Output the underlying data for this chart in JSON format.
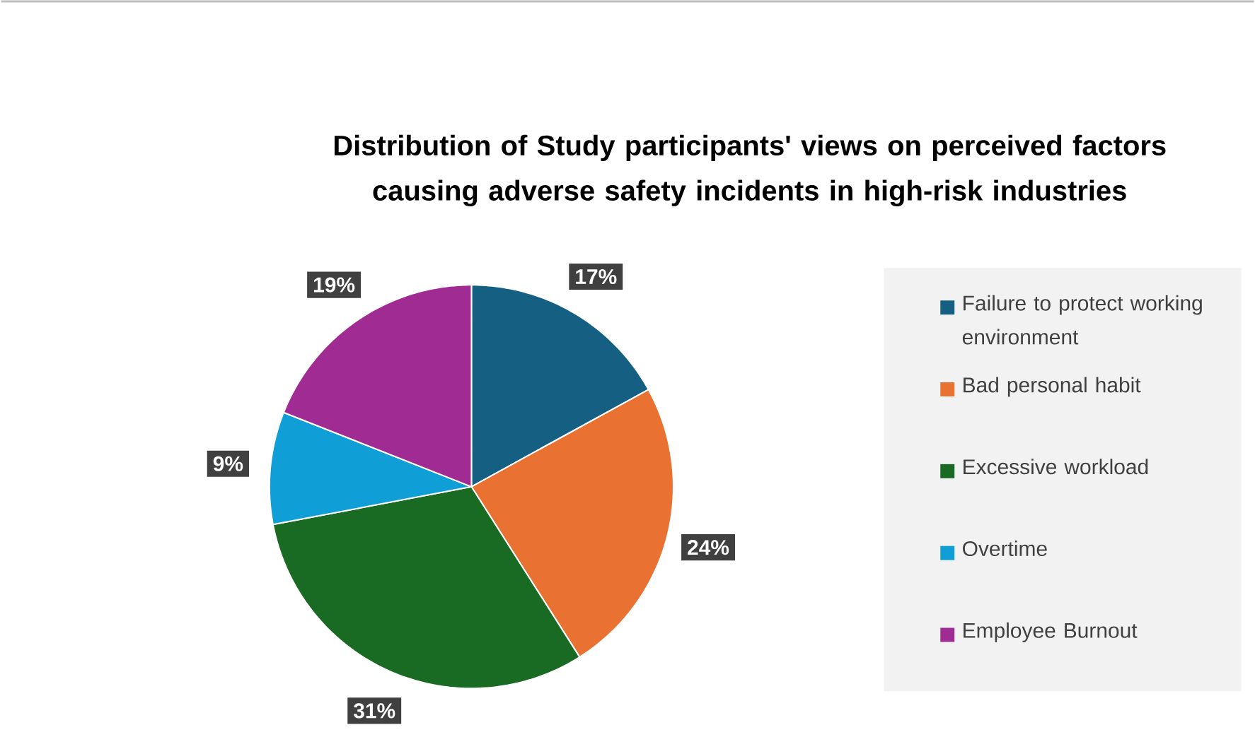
{
  "chart_data": {
    "type": "pie",
    "title": "Distribution of Study participants' views on perceived factors causing adverse safety incidents in high-risk industries",
    "categories": [
      "Failure to protect working environment",
      "Bad personal habit",
      "Excessive workload",
      "Overtime",
      "Employee Burnout"
    ],
    "values": [
      17,
      24,
      31,
      9,
      19
    ],
    "colors": [
      "#156082",
      "#e97132",
      "#196b24",
      "#0f9ed5",
      "#a02b93"
    ],
    "value_labels": [
      "17%",
      "24%",
      "31%",
      "9%",
      "19%"
    ],
    "legend": "right"
  }
}
